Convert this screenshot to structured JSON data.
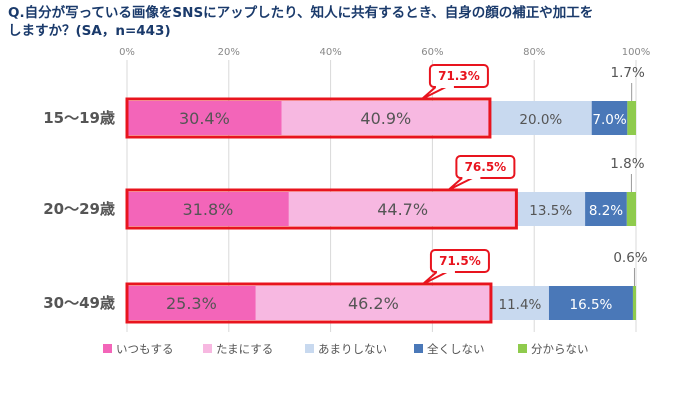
{
  "chart_data": {
    "type": "bar",
    "stacked": "100%",
    "orientation": "horizontal",
    "title_line1": "Q.自分が写っている画像をSNSにアップしたり、知人に共有するとき、自身の顔の補正や加工を",
    "title_line2": "しますか？(SA，n=443)",
    "xlim": [
      0,
      100
    ],
    "x_ticks": [
      "0%",
      "20%",
      "40%",
      "60%",
      "80%",
      "100%"
    ],
    "grid": "vertical",
    "legend_position": "bottom",
    "categories": [
      "15〜19歳",
      "20〜29歳",
      "30〜49歳"
    ],
    "series": [
      {
        "name": "いつもする",
        "color": "#f365b9",
        "values": [
          30.4,
          31.8,
          25.3
        ],
        "labels": [
          "30.4%",
          "31.8%",
          "25.3%"
        ]
      },
      {
        "name": "たまにする",
        "color": "#f7b8e1",
        "values": [
          40.9,
          44.7,
          46.2
        ],
        "labels": [
          "40.9%",
          "44.7%",
          "46.2%"
        ]
      },
      {
        "name": "あまりしない",
        "color": "#c8d9ef",
        "values": [
          20.0,
          13.5,
          11.4
        ],
        "labels": [
          "20.0%",
          "13.5%",
          "11.4%"
        ]
      },
      {
        "name": "全くしない",
        "color": "#4a78b8",
        "values": [
          7.0,
          8.2,
          16.5
        ],
        "labels": [
          "7.0%",
          "8.2%",
          "16.5%"
        ]
      },
      {
        "name": "分からない",
        "color": "#8fcb4d",
        "values": [
          1.7,
          1.8,
          0.6
        ],
        "labels": [
          "1.7%",
          "1.8%",
          "0.6%"
        ]
      }
    ],
    "highlight_totals": [
      "71.3%",
      "76.5%",
      "71.5%"
    ],
    "highlight_color": "#e8141e"
  }
}
